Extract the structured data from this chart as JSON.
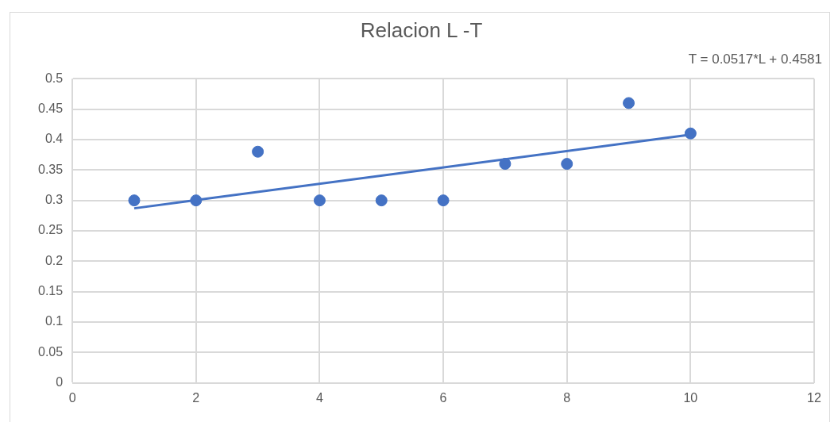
{
  "chart_data": {
    "type": "scatter",
    "title": "Relacion L -T",
    "annotations": [
      "T = 0.0517*L + 0.4581"
    ],
    "series": [
      {
        "type": "scatter",
        "color": "#4472c4",
        "marker": "circle",
        "x": [
          1,
          2,
          3,
          4,
          5,
          6,
          7,
          8,
          9,
          10
        ],
        "values": [
          0.3,
          0.3,
          0.38,
          0.3,
          0.3,
          0.3,
          0.36,
          0.36,
          0.46,
          0.41
        ]
      },
      {
        "type": "line",
        "color": "#4472c4",
        "marker": "none",
        "line_style": "solid",
        "x": [
          1,
          10
        ],
        "values": [
          0.287,
          0.408
        ]
      }
    ],
    "xlim": [
      0,
      12
    ],
    "xticks": [
      0,
      2,
      4,
      6,
      8,
      10,
      12
    ],
    "ylim": [
      0,
      0.5
    ],
    "yticks": [
      0,
      0.05,
      0.1,
      0.15,
      0.2,
      0.25,
      0.3,
      0.35,
      0.4,
      0.45,
      0.5
    ],
    "grid": true,
    "legend": false
  }
}
